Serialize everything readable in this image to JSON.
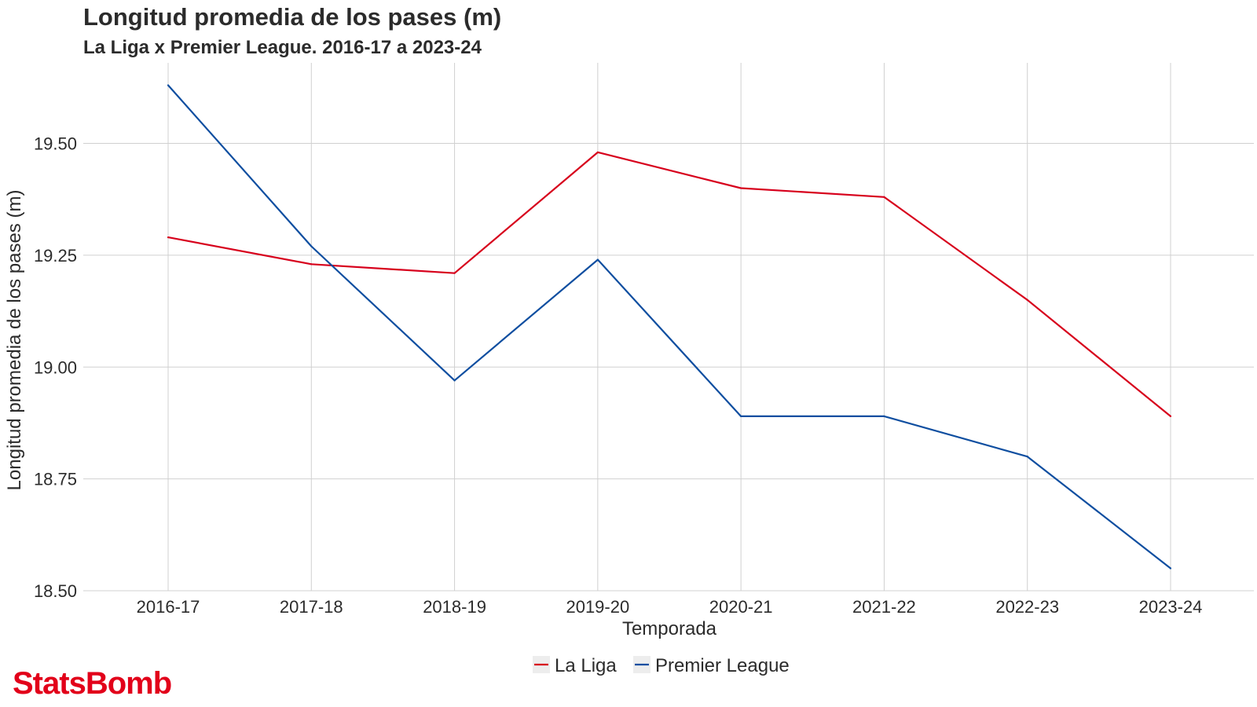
{
  "header": {
    "title": "Longitud promedia de los pases (m)",
    "subtitle": "La Liga x Premier League. 2016-17 a 2023-24"
  },
  "brand": {
    "logo_text": "StatsBomb",
    "color": "#e2001a"
  },
  "chart_data": {
    "type": "line",
    "title": "Longitud promedia de los pases (m)",
    "subtitle": "La Liga x Premier League. 2016-17 a 2023-24",
    "xlabel": "Temporada",
    "ylabel": "Longitud promedia de los pases (m)",
    "categories": [
      "2016-17",
      "2017-18",
      "2018-19",
      "2019-20",
      "2020-21",
      "2021-22",
      "2022-23",
      "2023-24"
    ],
    "ylim": [
      18.5,
      19.68
    ],
    "yticks": [
      "18.50",
      "18.75",
      "19.00",
      "19.25",
      "19.50"
    ],
    "grid": true,
    "legend_position": "bottom",
    "series": [
      {
        "name": "La Liga",
        "color": "#d7001c",
        "values": [
          19.29,
          19.23,
          19.21,
          19.48,
          19.4,
          19.38,
          19.15,
          18.89
        ]
      },
      {
        "name": "Premier League",
        "color": "#0e4ea0",
        "values": [
          19.63,
          19.27,
          18.97,
          19.24,
          18.89,
          18.89,
          18.8,
          18.55
        ]
      }
    ]
  }
}
